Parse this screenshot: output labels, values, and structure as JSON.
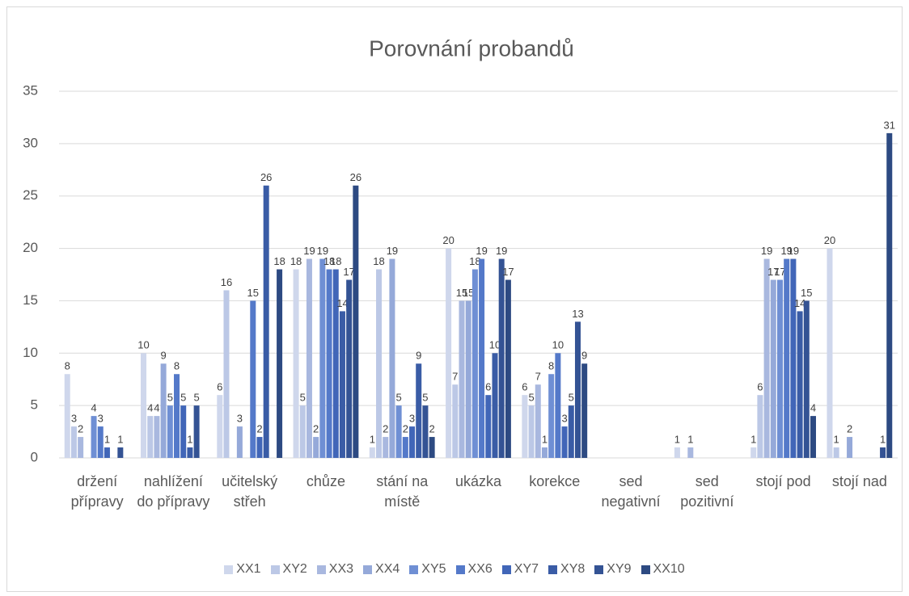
{
  "chart_data": {
    "type": "bar",
    "title": "Porovnání probandů",
    "categories": [
      "držení přípravy",
      "nahlížení do přípravy",
      "učitelský střeh",
      "chůze",
      "stání na místě",
      "ukázka",
      "korekce",
      "sed negativní",
      "sed pozitivní",
      "stojí pod",
      "stojí nad"
    ],
    "series": [
      {
        "name": "XX1",
        "color": "#cfd7ec",
        "values": [
          8,
          10,
          6,
          18,
          1,
          20,
          6,
          0,
          1,
          1,
          20
        ]
      },
      {
        "name": "XY2",
        "color": "#bcc8e6",
        "values": [
          3,
          4,
          16,
          5,
          18,
          7,
          5,
          0,
          0,
          6,
          1
        ]
      },
      {
        "name": "XX3",
        "color": "#a9b8df",
        "values": [
          2,
          4,
          0,
          19,
          2,
          15,
          7,
          0,
          1,
          19,
          0
        ]
      },
      {
        "name": "XX4",
        "color": "#95a9d9",
        "values": [
          0,
          9,
          3,
          2,
          19,
          15,
          1,
          0,
          0,
          17,
          2
        ]
      },
      {
        "name": "XY5",
        "color": "#6f8fd4",
        "values": [
          4,
          5,
          0,
          19,
          5,
          18,
          8,
          0,
          0,
          17,
          0
        ]
      },
      {
        "name": "XX6",
        "color": "#5479c9",
        "values": [
          3,
          8,
          15,
          18,
          2,
          19,
          10,
          0,
          0,
          19,
          0
        ]
      },
      {
        "name": "XY7",
        "color": "#4166b8",
        "values": [
          1,
          5,
          2,
          18,
          3,
          6,
          3,
          0,
          0,
          19,
          0
        ]
      },
      {
        "name": "XY8",
        "color": "#3a5ca6",
        "values": [
          0,
          1,
          26,
          14,
          9,
          10,
          5,
          0,
          0,
          14,
          0
        ]
      },
      {
        "name": "XY9",
        "color": "#345394",
        "values": [
          1,
          5,
          0,
          17,
          5,
          19,
          13,
          0,
          0,
          15,
          1
        ]
      },
      {
        "name": "XX10",
        "color": "#2d4a82",
        "values": [
          0,
          0,
          18,
          26,
          2,
          17,
          9,
          0,
          0,
          4,
          31
        ]
      }
    ],
    "ylim": [
      0,
      35
    ],
    "yticks": [
      0,
      5,
      10,
      15,
      20,
      25,
      30,
      35
    ],
    "grid": true,
    "legend": "bottom"
  }
}
